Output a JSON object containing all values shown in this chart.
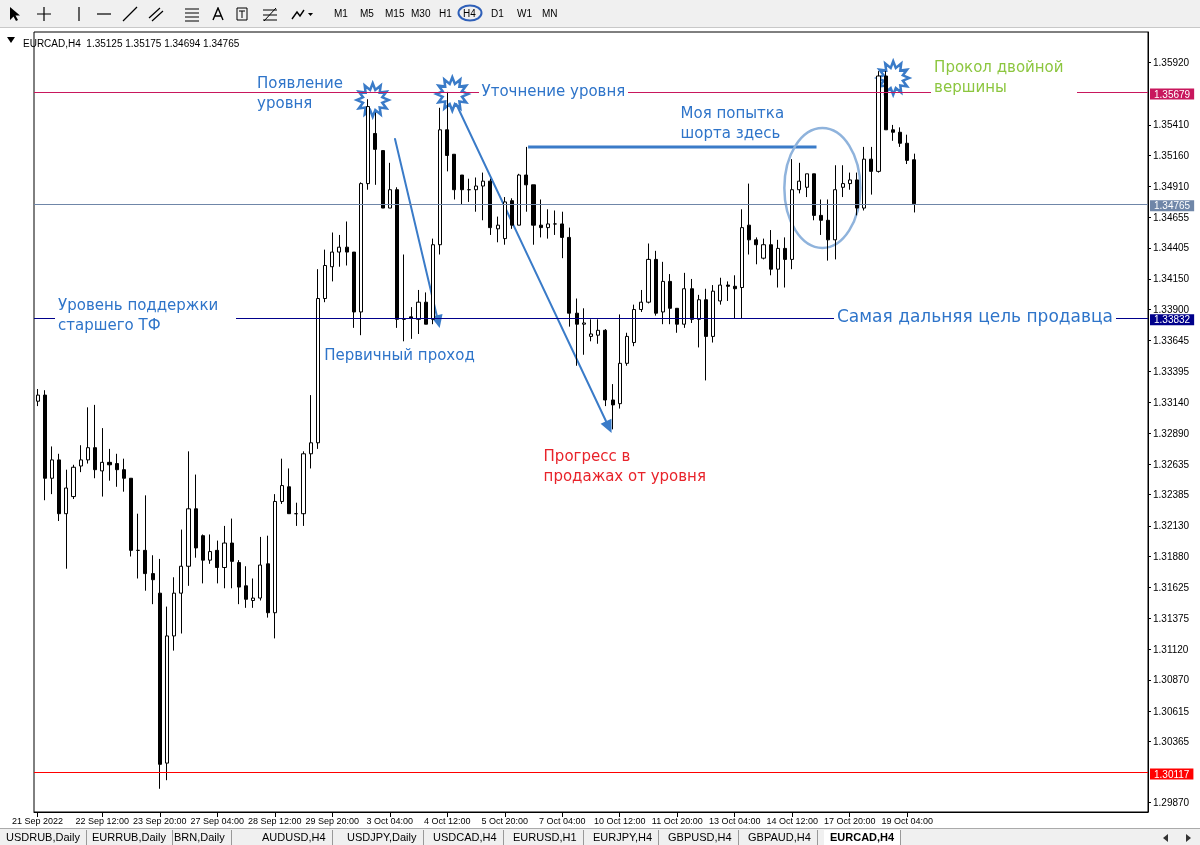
{
  "chart_data": {
    "type": "candlestick",
    "title": "EURCAD,H4  1.35125 1.35175 1.34694 1.34765",
    "categories": [
      "21 Sep 2022",
      null,
      null,
      null,
      null,
      null,
      null,
      null,
      null,
      "22 Sep 12:00",
      null,
      null,
      null,
      null,
      null,
      null,
      null,
      "23 Sep 20:00",
      null,
      null,
      null,
      null,
      null,
      null,
      null,
      "27 Sep 04:00",
      null,
      null,
      null,
      null,
      null,
      null,
      null,
      "28 Sep 12:00",
      null,
      null,
      null,
      null,
      null,
      null,
      null,
      "29 Sep 20:00",
      null,
      null,
      null,
      null,
      null,
      null,
      null,
      "3 Oct 04:00",
      null,
      null,
      null,
      null,
      null,
      null,
      null,
      "4 Oct 12:00",
      null,
      null,
      null,
      null,
      null,
      null,
      null,
      "5 Oct 20:00",
      null,
      null,
      null,
      null,
      null,
      null,
      null,
      "7 Oct 04:00",
      null,
      null,
      null,
      null,
      null,
      null,
      null,
      "10 Oct 12:00",
      null,
      null,
      null,
      null,
      null,
      null,
      null,
      "11 Oct 20:00",
      null,
      null,
      null,
      null,
      null,
      null,
      null,
      "13 Oct 04:00",
      null,
      null,
      null,
      null,
      null,
      null,
      null,
      "14 Oct 12:00",
      null,
      null,
      null,
      null,
      null,
      null,
      null,
      "17 Oct 20:00",
      null,
      null,
      null,
      null,
      null,
      null,
      null,
      "19 Oct 04:00",
      null,
      null,
      null,
      null,
      null,
      null,
      null,
      null,
      null,
      null,
      null,
      null,
      null,
      null,
      null,
      null,
      null,
      null,
      null,
      null,
      null,
      null,
      null,
      null,
      null,
      null,
      null,
      null,
      null,
      null,
      null,
      null,
      null
    ],
    "ohlc": [
      [
        1.3315,
        1.3325,
        1.3311,
        1.332
      ],
      [
        1.332,
        1.3324,
        1.3234,
        1.3252
      ],
      [
        1.3252,
        1.3278,
        1.3239,
        1.3267
      ],
      [
        1.3267,
        1.3272,
        1.3217,
        1.3223
      ],
      [
        1.3223,
        1.3259,
        1.3178,
        1.3244
      ],
      [
        1.3237,
        1.3263,
        1.3235,
        1.3261
      ],
      [
        1.3262,
        1.3279,
        1.3257,
        1.3267
      ],
      [
        1.3267,
        1.331,
        1.3264,
        1.3277
      ],
      [
        1.3277,
        1.3312,
        1.3252,
        1.3259
      ],
      [
        1.3258,
        1.3293,
        1.3237,
        1.3265
      ],
      [
        1.3265,
        1.3276,
        1.325,
        1.3263
      ],
      [
        1.3264,
        1.3272,
        1.3245,
        1.3259
      ],
      [
        1.3259,
        1.3268,
        1.3241,
        1.3252
      ],
      [
        1.3252,
        1.3252,
        1.3188,
        1.3193
      ],
      [
        1.3193,
        1.3223,
        1.317,
        1.3193
      ],
      [
        1.3193,
        1.3238,
        1.316,
        1.3174
      ],
      [
        1.3174,
        1.3189,
        1.3149,
        1.3169
      ],
      [
        1.3158,
        1.3186,
        1.2998,
        1.3018
      ],
      [
        1.3019,
        1.3147,
        1.3005,
        1.3123
      ],
      [
        1.3123,
        1.3171,
        1.3111,
        1.3158
      ],
      [
        1.3158,
        1.321,
        1.3125,
        1.318
      ],
      [
        1.318,
        1.3274,
        1.3164,
        1.3227
      ],
      [
        1.3227,
        1.3255,
        1.3187,
        1.3195
      ],
      [
        1.3205,
        1.3206,
        1.3166,
        1.3185
      ],
      [
        1.3185,
        1.3206,
        1.3182,
        1.3192
      ],
      [
        1.3193,
        1.3201,
        1.3166,
        1.3179
      ],
      [
        1.3179,
        1.3213,
        1.3162,
        1.3199
      ],
      [
        1.3199,
        1.3219,
        1.3162,
        1.3184
      ],
      [
        1.3183,
        1.3185,
        1.3149,
        1.3163
      ],
      [
        1.3164,
        1.318,
        1.3146,
        1.3153
      ],
      [
        1.3152,
        1.317,
        1.3146,
        1.3154
      ],
      [
        1.3154,
        1.3204,
        1.3152,
        1.3181
      ],
      [
        1.3182,
        1.3205,
        1.3138,
        1.3142
      ],
      [
        1.3142,
        1.3239,
        1.3121,
        1.3233
      ],
      [
        1.3233,
        1.3268,
        1.3231,
        1.3246
      ],
      [
        1.3245,
        1.326,
        1.3223,
        1.3223
      ],
      [
        1.3223,
        1.3232,
        1.3213,
        1.3223
      ],
      [
        1.3223,
        1.3274,
        1.3213,
        1.3272
      ],
      [
        1.3272,
        1.332,
        1.326,
        1.3281
      ],
      [
        1.3281,
        1.3423,
        1.3276,
        1.3399
      ],
      [
        1.3399,
        1.3439,
        1.3396,
        1.3426
      ],
      [
        1.3425,
        1.3453,
        1.3413,
        1.3437
      ],
      [
        1.3437,
        1.3451,
        1.3425,
        1.3441
      ],
      [
        1.3441,
        1.3462,
        1.3426,
        1.3437
      ],
      [
        1.3437,
        1.3437,
        1.3375,
        1.3388
      ],
      [
        1.3388,
        1.3494,
        1.3369,
        1.3493
      ],
      [
        1.3493,
        1.3562,
        1.3488,
        1.3556
      ],
      [
        1.3534,
        1.3551,
        1.3492,
        1.3521
      ],
      [
        1.352,
        1.352,
        1.3473,
        1.3473
      ],
      [
        1.3473,
        1.351,
        1.3473,
        1.3488
      ],
      [
        1.3488,
        1.349,
        1.3375,
        1.3382
      ],
      [
        1.3382,
        1.3435,
        1.3364,
        1.3382
      ],
      [
        1.3384,
        1.3392,
        1.3366,
        1.3383
      ],
      [
        1.3382,
        1.3406,
        1.337,
        1.3396
      ],
      [
        1.3396,
        1.3404,
        1.3378,
        1.3378
      ],
      [
        1.3382,
        1.3448,
        1.3378,
        1.3443
      ],
      [
        1.3443,
        1.3555,
        1.3435,
        1.3537
      ],
      [
        1.3537,
        1.3568,
        1.3503,
        1.3516
      ],
      [
        1.3517,
        1.3517,
        1.348,
        1.3488
      ],
      [
        1.35,
        1.35,
        1.3476,
        1.3488
      ],
      [
        1.3488,
        1.3497,
        1.3478,
        1.3488
      ],
      [
        1.3488,
        1.3498,
        1.347,
        1.3491
      ],
      [
        1.3491,
        1.3502,
        1.3463,
        1.3495
      ],
      [
        1.3495,
        1.3497,
        1.3451,
        1.3457
      ],
      [
        1.3456,
        1.3466,
        1.3445,
        1.3459
      ],
      [
        1.3448,
        1.3482,
        1.3443,
        1.3478
      ],
      [
        1.3479,
        1.3481,
        1.3456,
        1.3459
      ],
      [
        1.3459,
        1.3501,
        1.3459,
        1.35
      ],
      [
        1.35,
        1.3523,
        1.347,
        1.3492
      ],
      [
        1.3492,
        1.3492,
        1.3443,
        1.3459
      ],
      [
        1.3459,
        1.348,
        1.3449,
        1.3457
      ],
      [
        1.3457,
        1.3472,
        1.3448,
        1.346
      ],
      [
        1.346,
        1.3471,
        1.3451,
        1.346
      ],
      [
        1.346,
        1.347,
        1.3432,
        1.3449
      ],
      [
        1.3449,
        1.3457,
        1.3376,
        1.3387
      ],
      [
        1.3387,
        1.3399,
        1.3344,
        1.3378
      ],
      [
        1.3378,
        1.3391,
        1.3353,
        1.3379
      ],
      [
        1.3368,
        1.3382,
        1.3364,
        1.337
      ],
      [
        1.3369,
        1.3382,
        1.3362,
        1.3373
      ],
      [
        1.3373,
        1.3374,
        1.3311,
        1.3316
      ],
      [
        1.3316,
        1.3329,
        1.3292,
        1.3312
      ],
      [
        1.3313,
        1.3386,
        1.3309,
        1.3346
      ],
      [
        1.3346,
        1.3371,
        1.3344,
        1.3368
      ],
      [
        1.3363,
        1.3394,
        1.336,
        1.339
      ],
      [
        1.339,
        1.3406,
        1.3388,
        1.3396
      ],
      [
        1.3396,
        1.3444,
        1.3395,
        1.3431
      ],
      [
        1.3431,
        1.3438,
        1.3385,
        1.3387
      ],
      [
        1.3388,
        1.3429,
        1.3378,
        1.3413
      ],
      [
        1.3413,
        1.3419,
        1.3378,
        1.3391
      ],
      [
        1.3391,
        1.3391,
        1.3371,
        1.3378
      ],
      [
        1.3378,
        1.342,
        1.3375,
        1.3407
      ],
      [
        1.3407,
        1.3415,
        1.3379,
        1.3382
      ],
      [
        1.3382,
        1.3402,
        1.3359,
        1.3398
      ],
      [
        1.3398,
        1.3407,
        1.3332,
        1.3368
      ],
      [
        1.3368,
        1.341,
        1.3363,
        1.3405
      ],
      [
        1.3397,
        1.3416,
        1.3394,
        1.341
      ],
      [
        1.341,
        1.3413,
        1.3397,
        1.3409
      ],
      [
        1.3409,
        1.3418,
        1.3383,
        1.3407
      ],
      [
        1.3408,
        1.3472,
        1.3383,
        1.3457
      ],
      [
        1.3459,
        1.3493,
        1.3435,
        1.3447
      ],
      [
        1.3447,
        1.3449,
        1.3427,
        1.3443
      ],
      [
        1.3432,
        1.3448,
        1.3431,
        1.3443
      ],
      [
        1.3443,
        1.3455,
        1.3418,
        1.3423
      ],
      [
        1.3423,
        1.3447,
        1.3408,
        1.344
      ],
      [
        1.344,
        1.3449,
        1.3408,
        1.3431
      ],
      [
        1.3431,
        1.3513,
        1.3423,
        1.3488
      ],
      [
        1.3488,
        1.351,
        1.3485,
        1.3495
      ],
      [
        1.349,
        1.3501,
        1.3482,
        1.3501
      ],
      [
        1.3501,
        1.3501,
        1.3463,
        1.3467
      ],
      [
        1.3467,
        1.348,
        1.3451,
        1.3463
      ],
      [
        1.3463,
        1.348,
        1.343,
        1.3447
      ],
      [
        1.3447,
        1.3508,
        1.3431,
        1.3488
      ],
      [
        1.349,
        1.3508,
        1.3482,
        1.3493
      ],
      [
        1.3493,
        1.3502,
        1.3488,
        1.3496
      ],
      [
        1.3496,
        1.3502,
        1.3467,
        1.3473
      ],
      [
        1.3473,
        1.3523,
        1.3471,
        1.3513
      ],
      [
        1.3513,
        1.3523,
        1.3484,
        1.3503
      ],
      [
        1.3503,
        1.3585,
        1.3502,
        1.3581
      ],
      [
        1.3581,
        1.3585,
        1.3537,
        1.3537
      ],
      [
        1.3537,
        1.3541,
        1.3528,
        1.3535
      ],
      [
        1.3535,
        1.3539,
        1.3523,
        1.3526
      ],
      [
        1.3526,
        1.3533,
        1.3509,
        1.3512
      ],
      [
        1.35125,
        1.35175,
        1.34694,
        1.34765
      ],
      null,
      null,
      null,
      null,
      null,
      null,
      null,
      null,
      null,
      null,
      null,
      null,
      null,
      null,
      null,
      null,
      null,
      null,
      null,
      null,
      null,
      null,
      null,
      null,
      null,
      null,
      null,
      null,
      null,
      null,
      null,
      null
    ],
    "ylim": [
      1.2979,
      1.3617
    ],
    "yticks": [
      {
        "value": 1.2987,
        "label": "1.29870"
      },
      {
        "value": 1.30365,
        "label": "1.30365"
      },
      {
        "value": 1.30615,
        "label": "1.30615"
      },
      {
        "value": 1.3087,
        "label": "1.30870"
      },
      {
        "value": 1.3112,
        "label": "1.31120"
      },
      {
        "value": 1.31375,
        "label": "1.31375"
      },
      {
        "value": 1.31625,
        "label": "1.31625"
      },
      {
        "value": 1.3188,
        "label": "1.31880"
      },
      {
        "value": 1.3213,
        "label": "1.32130"
      },
      {
        "value": 1.32385,
        "label": "1.32385"
      },
      {
        "value": 1.32635,
        "label": "1.32635"
      },
      {
        "value": 1.3289,
        "label": "1.32890"
      },
      {
        "value": 1.3314,
        "label": "1.33140"
      },
      {
        "value": 1.33395,
        "label": "1.33395"
      },
      {
        "value": 1.33645,
        "label": "1.33645"
      },
      {
        "value": 1.339,
        "label": "1.33900"
      },
      {
        "value": 1.3415,
        "label": "1.34150"
      },
      {
        "value": 1.34405,
        "label": "1.34405"
      },
      {
        "value": 1.34655,
        "label": "1.34655"
      },
      {
        "value": 1.3491,
        "label": "1.34910"
      },
      {
        "value": 1.3516,
        "label": "1.35160"
      },
      {
        "value": 1.3541,
        "label": "1.35410"
      },
      {
        "value": 1.3592,
        "label": "1.35920"
      }
    ],
    "ref_lines": [
      {
        "axis": "y",
        "value": 1.35679,
        "label": "1.35679",
        "color": "#c8175d"
      },
      {
        "axis": "y",
        "value": 1.34765,
        "label": "1.34765",
        "color": "#6f86a8"
      },
      {
        "axis": "y",
        "value": 1.33832,
        "label": "1.33832",
        "color": "#00008b"
      },
      {
        "axis": "y",
        "value": 1.30117,
        "label": "1.30117",
        "color": "#ff0000"
      }
    ],
    "annotations": [
      "Появление уровня",
      "Уточнение уровня",
      "Моя попытка шорта здесь",
      "Прокол двойной вершины",
      "Уровень поддержки старшего ТФ",
      "Первичный проход",
      "Самая дальняя цель продавца",
      "Прогресс в продажах от уровня",
      "M1",
      "M5",
      "M15",
      "M30",
      "H1",
      "H4",
      "D1",
      "W1",
      "MN",
      "USDRUB,Daily",
      "EURRUB,Daily",
      "BRN,Daily",
      "AUDUSD,H4",
      "USDJPY,Daily",
      "USDCAD,H4",
      "EURUSD,H1",
      "EURJPY,H4",
      "GBPUSD,H4",
      "GBPAUD,H4",
      "EURCAD,H4"
    ]
  }
}
